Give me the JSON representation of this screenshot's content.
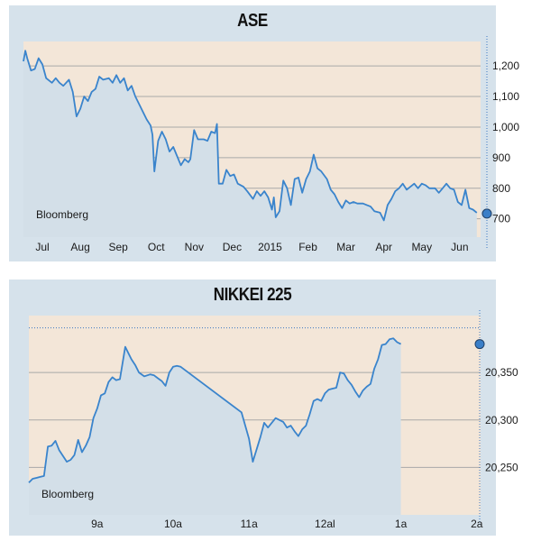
{
  "chart_data": [
    {
      "type": "area",
      "title": "ASE",
      "source": "Bloomberg",
      "ylim": [
        640,
        1280
      ],
      "y_ticks": [
        700,
        800,
        900,
        1000,
        1100,
        1200
      ],
      "y_tick_labels": [
        "700",
        "800",
        "900",
        "1,000",
        "1,100",
        "1,200"
      ],
      "x_tick_labels": [
        "Jul",
        "Aug",
        "Sep",
        "Oct",
        "Nov",
        "Dec",
        "2015",
        "Feb",
        "Mar",
        "Apr",
        "May",
        "Jun"
      ],
      "x_tick_positions": [
        0.5,
        1.5,
        2.5,
        3.5,
        4.5,
        5.5,
        6.5,
        7.5,
        8.5,
        9.5,
        10.5,
        11.5
      ],
      "xlim": [
        0,
        12.05
      ],
      "last_value": 717,
      "grid": true,
      "series": [
        {
          "values": [
            [
              0.0,
              1215
            ],
            [
              0.05,
              1250
            ],
            [
              0.1,
              1225
            ],
            [
              0.2,
              1185
            ],
            [
              0.3,
              1190
            ],
            [
              0.4,
              1225
            ],
            [
              0.5,
              1205
            ],
            [
              0.6,
              1160
            ],
            [
              0.75,
              1145
            ],
            [
              0.85,
              1160
            ],
            [
              0.95,
              1145
            ],
            [
              1.05,
              1135
            ],
            [
              1.2,
              1155
            ],
            [
              1.3,
              1115
            ],
            [
              1.4,
              1035
            ],
            [
              1.5,
              1060
            ],
            [
              1.6,
              1100
            ],
            [
              1.7,
              1085
            ],
            [
              1.8,
              1115
            ],
            [
              1.9,
              1125
            ],
            [
              2.0,
              1165
            ],
            [
              2.1,
              1155
            ],
            [
              2.25,
              1160
            ],
            [
              2.35,
              1145
            ],
            [
              2.45,
              1170
            ],
            [
              2.55,
              1145
            ],
            [
              2.65,
              1160
            ],
            [
              2.75,
              1120
            ],
            [
              2.85,
              1135
            ],
            [
              2.95,
              1100
            ],
            [
              3.05,
              1075
            ],
            [
              3.15,
              1050
            ],
            [
              3.25,
              1025
            ],
            [
              3.35,
              1005
            ],
            [
              3.4,
              975
            ],
            [
              3.45,
              855
            ],
            [
              3.55,
              955
            ],
            [
              3.65,
              985
            ],
            [
              3.75,
              960
            ],
            [
              3.85,
              920
            ],
            [
              3.95,
              935
            ],
            [
              4.05,
              905
            ],
            [
              4.15,
              875
            ],
            [
              4.25,
              895
            ],
            [
              4.35,
              885
            ],
            [
              4.4,
              895
            ],
            [
              4.5,
              990
            ],
            [
              4.6,
              960
            ],
            [
              4.75,
              960
            ],
            [
              4.85,
              955
            ],
            [
              4.95,
              985
            ],
            [
              5.05,
              980
            ],
            [
              5.1,
              1010
            ],
            [
              5.15,
              815
            ],
            [
              5.25,
              815
            ],
            [
              5.35,
              860
            ],
            [
              5.45,
              840
            ],
            [
              5.55,
              845
            ],
            [
              5.65,
              815
            ],
            [
              5.8,
              805
            ],
            [
              5.9,
              790
            ],
            [
              6.05,
              765
            ],
            [
              6.15,
              790
            ],
            [
              6.25,
              775
            ],
            [
              6.35,
              790
            ],
            [
              6.45,
              770
            ],
            [
              6.55,
              730
            ],
            [
              6.6,
              770
            ],
            [
              6.65,
              705
            ],
            [
              6.75,
              725
            ],
            [
              6.85,
              825
            ],
            [
              6.95,
              800
            ],
            [
              7.05,
              745
            ],
            [
              7.15,
              830
            ],
            [
              7.25,
              835
            ],
            [
              7.35,
              785
            ],
            [
              7.45,
              830
            ],
            [
              7.55,
              855
            ],
            [
              7.65,
              910
            ],
            [
              7.75,
              865
            ],
            [
              7.85,
              855
            ],
            [
              8.0,
              830
            ],
            [
              8.1,
              795
            ],
            [
              8.2,
              780
            ],
            [
              8.3,
              755
            ],
            [
              8.4,
              735
            ],
            [
              8.5,
              760
            ],
            [
              8.6,
              750
            ],
            [
              8.7,
              755
            ],
            [
              8.8,
              750
            ],
            [
              8.95,
              750
            ],
            [
              9.05,
              745
            ],
            [
              9.15,
              740
            ],
            [
              9.25,
              725
            ],
            [
              9.4,
              720
            ],
            [
              9.5,
              695
            ],
            [
              9.6,
              745
            ],
            [
              9.7,
              765
            ],
            [
              9.8,
              790
            ],
            [
              9.9,
              800
            ],
            [
              10.0,
              815
            ],
            [
              10.1,
              795
            ],
            [
              10.2,
              805
            ],
            [
              10.3,
              815
            ],
            [
              10.4,
              800
            ],
            [
              10.5,
              815
            ],
            [
              10.6,
              810
            ],
            [
              10.7,
              800
            ],
            [
              10.85,
              800
            ],
            [
              10.95,
              785
            ],
            [
              11.05,
              800
            ],
            [
              11.15,
              815
            ],
            [
              11.25,
              800
            ],
            [
              11.35,
              795
            ],
            [
              11.45,
              755
            ],
            [
              11.55,
              745
            ],
            [
              11.65,
              795
            ],
            [
              11.75,
              735
            ],
            [
              11.85,
              730
            ],
            [
              11.95,
              720
            ]
          ]
        }
      ]
    },
    {
      "type": "area",
      "title": "NIKKEI 225",
      "source": "Bloomberg",
      "ylim": [
        20200,
        20410
      ],
      "y_ticks": [
        20250,
        20300,
        20350
      ],
      "y_tick_labels": [
        "20,250",
        "20,300",
        "20,350"
      ],
      "dotted_reference": 20397,
      "x_tick_labels": [
        "9a",
        "10a",
        "11a",
        "12al",
        "1a",
        "2a"
      ],
      "x_tick_positions": [
        9,
        10,
        11,
        12,
        13,
        14
      ],
      "xlim": [
        8.1,
        14.05
      ],
      "last_value": 20380,
      "grid": true,
      "series": [
        {
          "values": [
            [
              8.1,
              20234
            ],
            [
              8.15,
              20238
            ],
            [
              8.2,
              20239
            ],
            [
              8.25,
              20240
            ],
            [
              8.3,
              20241
            ],
            [
              8.35,
              20272
            ],
            [
              8.4,
              20273
            ],
            [
              8.45,
              20278
            ],
            [
              8.5,
              20268
            ],
            [
              8.55,
              20262
            ],
            [
              8.6,
              20256
            ],
            [
              8.65,
              20258
            ],
            [
              8.7,
              20263
            ],
            [
              8.75,
              20279
            ],
            [
              8.8,
              20266
            ],
            [
              8.85,
              20273
            ],
            [
              8.9,
              20282
            ],
            [
              8.95,
              20302
            ],
            [
              9.0,
              20312
            ],
            [
              9.05,
              20326
            ],
            [
              9.1,
              20328
            ],
            [
              9.15,
              20340
            ],
            [
              9.2,
              20345
            ],
            [
              9.25,
              20342
            ],
            [
              9.3,
              20343
            ],
            [
              9.37,
              20377
            ],
            [
              9.45,
              20364
            ],
            [
              9.5,
              20358
            ],
            [
              9.55,
              20350
            ],
            [
              9.62,
              20346
            ],
            [
              9.7,
              20348
            ],
            [
              9.75,
              20347
            ],
            [
              9.8,
              20344
            ],
            [
              9.85,
              20341
            ],
            [
              9.9,
              20336
            ],
            [
              9.95,
              20350
            ],
            [
              10.0,
              20356
            ],
            [
              10.05,
              20357
            ],
            [
              10.1,
              20356
            ],
            [
              10.9,
              20308
            ],
            [
              11.0,
              20280
            ],
            [
              11.05,
              20256
            ],
            [
              11.15,
              20282
            ],
            [
              11.2,
              20297
            ],
            [
              11.25,
              20292
            ],
            [
              11.3,
              20297
            ],
            [
              11.35,
              20302
            ],
            [
              11.4,
              20300
            ],
            [
              11.45,
              20298
            ],
            [
              11.5,
              20292
            ],
            [
              11.55,
              20294
            ],
            [
              11.6,
              20288
            ],
            [
              11.65,
              20283
            ],
            [
              11.7,
              20290
            ],
            [
              11.75,
              20294
            ],
            [
              11.8,
              20306
            ],
            [
              11.85,
              20320
            ],
            [
              11.9,
              20322
            ],
            [
              11.95,
              20320
            ],
            [
              12.0,
              20328
            ],
            [
              12.05,
              20332
            ],
            [
              12.1,
              20333
            ],
            [
              12.15,
              20334
            ],
            [
              12.2,
              20350
            ],
            [
              12.25,
              20349
            ],
            [
              12.3,
              20342
            ],
            [
              12.35,
              20337
            ],
            [
              12.4,
              20330
            ],
            [
              12.45,
              20324
            ],
            [
              12.5,
              20331
            ],
            [
              12.55,
              20335
            ],
            [
              12.6,
              20338
            ],
            [
              12.65,
              20354
            ],
            [
              12.7,
              20364
            ],
            [
              12.75,
              20379
            ],
            [
              12.8,
              20380
            ],
            [
              12.85,
              20385
            ],
            [
              12.9,
              20386
            ],
            [
              12.95,
              20382
            ],
            [
              13.0,
              20380
            ]
          ]
        }
      ]
    }
  ]
}
